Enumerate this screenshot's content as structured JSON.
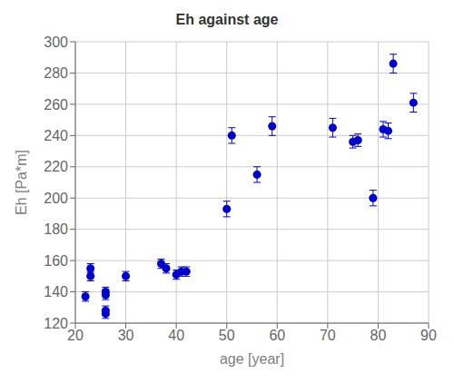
{
  "chart_data": {
    "type": "scatter",
    "title": "Eh against age",
    "x_label": "age [year]",
    "y_label": "Eh [Pa*m]",
    "x": [
      22,
      23,
      23,
      26,
      26,
      26,
      26,
      30,
      37,
      38,
      40,
      41,
      42,
      50,
      51,
      56,
      59,
      71,
      75,
      76,
      79,
      81,
      82,
      83,
      87
    ],
    "values": [
      137,
      155,
      150,
      140,
      138,
      128,
      126,
      150,
      158,
      155,
      151,
      153,
      153,
      193,
      240,
      215,
      246,
      245,
      236,
      237,
      200,
      244,
      243,
      286,
      261
    ],
    "yerr": [
      3,
      3,
      3,
      3,
      3,
      3,
      3,
      3,
      3,
      3,
      3,
      3,
      3,
      5,
      5,
      5,
      6,
      6,
      4,
      4,
      5,
      5,
      5,
      6,
      6
    ],
    "color": "#0000cc",
    "marker": "circle",
    "xlim": [
      20,
      90
    ],
    "ylim": [
      120,
      300
    ],
    "xticks": [
      20,
      30,
      40,
      50,
      60,
      70,
      80,
      90
    ],
    "yticks": [
      120,
      140,
      160,
      180,
      200,
      220,
      240,
      260,
      280,
      300
    ],
    "grid": true
  }
}
